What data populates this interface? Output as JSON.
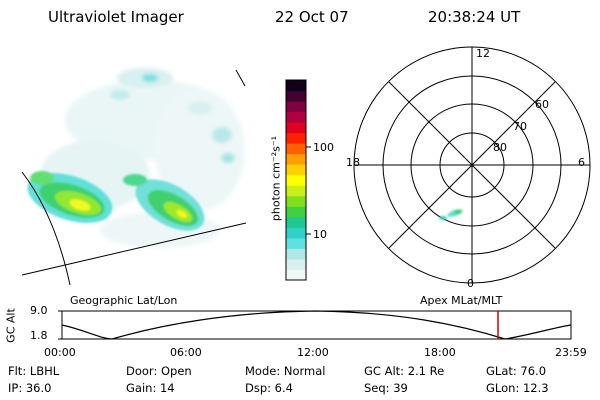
{
  "header": {
    "instrument": "Ultraviolet Imager",
    "date": "22 Oct 07",
    "time": "20:38:24 UT"
  },
  "colorbar": {
    "label": "photon cm⁻²s⁻¹",
    "ticks": [
      {
        "value": 100,
        "label": "100"
      },
      {
        "value": 10,
        "label": "10"
      }
    ],
    "colors": [
      "#f0f8f8",
      "#d8f0f0",
      "#b0e8e8",
      "#60e0e0",
      "#30d0c8",
      "#20c890",
      "#40d040",
      "#80e020",
      "#c8f018",
      "#ffff00",
      "#ffd000",
      "#ffa000",
      "#ff6000",
      "#ff2000",
      "#e00020",
      "#b00040",
      "#800040",
      "#400030",
      "#100018"
    ]
  },
  "polar_plot": {
    "mlt_labels": {
      "top": "12",
      "bottom": "0",
      "left": "18",
      "right": "6"
    },
    "lat_labels": [
      "60",
      "70",
      "80"
    ]
  },
  "timeline": {
    "left_caption": "Geographic Lat/Lon",
    "right_caption": "Apex MLat/MLT",
    "axis_label": "GC Alt",
    "y_max_label": "9.0",
    "y_min_label": "1.8",
    "x_ticks": [
      "00:00",
      "06:00",
      "12:00",
      "18:00",
      "23:59"
    ],
    "marker_color": "#cc0000"
  },
  "info": {
    "row1": {
      "filter": "Flt: LBHL",
      "door": "Door: Open",
      "mode": "Mode: Normal",
      "gc_alt": "GC Alt: 2.1 Re",
      "glat": "GLat:  76.0"
    },
    "row2": {
      "ip": "IP: 36.0",
      "gain": "Gain: 14",
      "dsp": "Dsp:      6.4",
      "seq": "Seq: 39",
      "glon": "GLon:   12.3"
    }
  }
}
